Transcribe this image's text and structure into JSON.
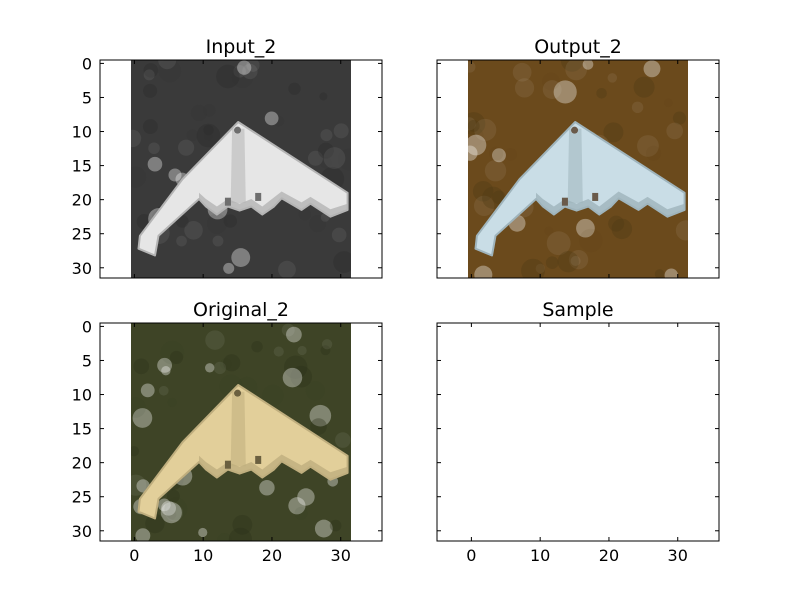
{
  "chart_data": [
    {
      "type": "image",
      "title": "Input_2",
      "image_desc": "grayscale 32x32 image of a flying-wing (B-2 style) aircraft seen from above",
      "xlim": [
        -5,
        36
      ],
      "ylim": [
        31.5,
        -0.5
      ],
      "xticks": [
        0,
        10,
        20,
        30
      ],
      "yticks": [
        0,
        5,
        10,
        15,
        20,
        25,
        30
      ],
      "show_xticklabels": false,
      "show_yticklabels": true,
      "palette": {
        "bg": "#3a3a3a",
        "bg_dark": "#2a2a2a",
        "plane": "#e6e6e6",
        "plane_shade": "#b4b4b4",
        "detail": "#6e6e6e"
      }
    },
    {
      "type": "image",
      "title": "Output_2",
      "image_desc": "colorized 32x32 image of the aircraft: pale blue-white plane on a brownish-orange background",
      "xlim": [
        -5,
        36
      ],
      "ylim": [
        31.5,
        -0.5
      ],
      "xticks": [
        0,
        10,
        20,
        30
      ],
      "yticks": [
        0,
        5,
        10,
        15,
        20,
        25,
        30
      ],
      "show_xticklabels": false,
      "show_yticklabels": false,
      "palette": {
        "bg": "#6b4a1c",
        "bg_dark": "#4e3814",
        "plane": "#c9dde6",
        "plane_shade": "#9fb4bc",
        "detail": "#6a5a4a"
      }
    },
    {
      "type": "image",
      "title": "Original_2",
      "image_desc": "original 32x32 color image of the aircraft: cream-colored plane on a dark olive-green background",
      "xlim": [
        -5,
        36
      ],
      "ylim": [
        31.5,
        -0.5
      ],
      "xticks": [
        0,
        10,
        20,
        30
      ],
      "yticks": [
        0,
        5,
        10,
        15,
        20,
        25,
        30
      ],
      "show_xticklabels": true,
      "show_yticklabels": true,
      "palette": {
        "bg": "#3e4426",
        "bg_dark": "#2c3219",
        "plane": "#e2cf9a",
        "plane_shade": "#bfae7e",
        "detail": "#6b6040"
      }
    },
    {
      "type": "image",
      "title": "Sample",
      "image_desc": "empty axes",
      "xlim": [
        -5,
        36
      ],
      "ylim": [
        31.5,
        -0.5
      ],
      "xticks": [
        0,
        10,
        20,
        30
      ],
      "yticks": [
        0,
        5,
        10,
        15,
        20,
        25,
        30
      ],
      "show_xticklabels": true,
      "show_yticklabels": false,
      "palette": null
    }
  ]
}
